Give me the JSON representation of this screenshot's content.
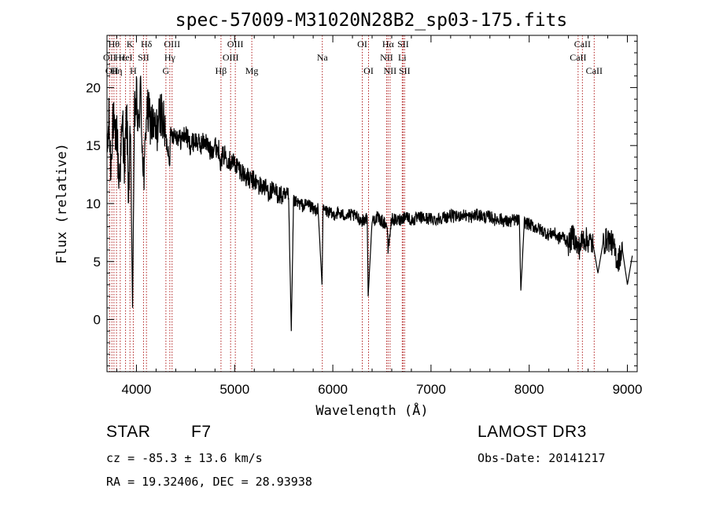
{
  "chart_data": {
    "type": "line",
    "title": "spec-57009-M31020N28B2_sp03-175.fits",
    "xlabel": "Wavelength (Å)",
    "ylabel": "Flux (relative)",
    "xlim": [
      3700,
      9100
    ],
    "ylim": [
      -4.5,
      24.5
    ],
    "xticks": [
      4000,
      5000,
      6000,
      7000,
      8000,
      9000
    ],
    "xtick_labels": [
      "4000",
      "5000",
      "6000",
      "7000",
      "8000",
      "9000"
    ],
    "yticks": [
      0,
      5,
      10,
      15,
      20
    ],
    "ytick_labels": [
      "0",
      "5",
      "10",
      "15",
      "20"
    ],
    "series": [
      {
        "name": "spectrum",
        "x": [
          3700,
          3720,
          3740,
          3760,
          3780,
          3800,
          3820,
          3840,
          3860,
          3880,
          3900,
          3920,
          3940,
          3960,
          3980,
          4000,
          4020,
          4040,
          4060,
          4080,
          4100,
          4150,
          4200,
          4250,
          4300,
          4340,
          4350,
          4400,
          4450,
          4500,
          4550,
          4600,
          4650,
          4700,
          4750,
          4800,
          4850,
          4861,
          4870,
          4900,
          4950,
          5000,
          5050,
          5100,
          5150,
          5200,
          5250,
          5300,
          5350,
          5400,
          5450,
          5500,
          5550,
          5577,
          5600,
          5650,
          5700,
          5750,
          5800,
          5850,
          5890,
          5900,
          5950,
          6000,
          6050,
          6100,
          6150,
          6200,
          6250,
          6300,
          6350,
          6360,
          6400,
          6450,
          6500,
          6550,
          6563,
          6600,
          6650,
          6700,
          6750,
          6800,
          6850,
          6900,
          6950,
          7000,
          7050,
          7100,
          7150,
          7200,
          7250,
          7300,
          7350,
          7400,
          7450,
          7500,
          7550,
          7600,
          7650,
          7700,
          7750,
          7800,
          7850,
          7900,
          7915,
          7950,
          8000,
          8050,
          8100,
          8150,
          8200,
          8250,
          8300,
          8350,
          8400,
          8450,
          8500,
          8550,
          8600,
          8650,
          8700,
          8750,
          8800,
          8850,
          8900,
          8950,
          9000,
          9050
        ],
        "y": [
          14,
          17,
          13,
          18,
          15,
          16.5,
          12,
          14,
          17,
          13,
          18,
          11,
          16,
          1,
          17.5,
          19,
          16,
          20,
          15,
          12,
          18,
          17,
          16,
          18,
          15.5,
          14,
          16,
          16,
          15.5,
          16,
          15,
          15.5,
          15,
          15.5,
          14.5,
          15,
          14.5,
          13,
          14,
          14.2,
          13.7,
          13.5,
          13,
          12.5,
          12,
          12,
          11.5,
          11.5,
          11,
          11,
          10.8,
          10.5,
          10.5,
          -1,
          10.2,
          10,
          9.8,
          10,
          9.5,
          9.5,
          3,
          9.5,
          9.3,
          9,
          9.2,
          9,
          9,
          9,
          8.8,
          8.5,
          8.8,
          2,
          8.5,
          8.8,
          8.5,
          8.2,
          6,
          8.7,
          8.5,
          8.7,
          9,
          8.5,
          8.7,
          8.8,
          8.7,
          8.7,
          8.6,
          8.8,
          8.8,
          9,
          8.8,
          9,
          9,
          8.8,
          9,
          9,
          8.8,
          8.9,
          8.6,
          8.7,
          8.5,
          8.4,
          8.6,
          8.5,
          2.5,
          8.4,
          8.2,
          8,
          7.8,
          7.6,
          7.3,
          7.5,
          7,
          7.2,
          6.5,
          7.3,
          6,
          7,
          6.8,
          6.5,
          4,
          6.5,
          7,
          6.5,
          5,
          6,
          3,
          5.5
        ]
      }
    ],
    "line_labels": [
      {
        "wavelength": 3727,
        "label": "OII",
        "row": 2
      },
      {
        "wavelength": 3750,
        "label": "OII",
        "row": 3
      },
      {
        "wavelength": 3771,
        "label": "Hθ",
        "row": 1
      },
      {
        "wavelength": 3797,
        "label": "Hη",
        "row": 3
      },
      {
        "wavelength": 3835,
        "label": "Hε",
        "row": 2
      },
      {
        "wavelength": 3889,
        "label": "HeI",
        "row": 2
      },
      {
        "wavelength": 3934,
        "label": "K",
        "row": 1
      },
      {
        "wavelength": 3968,
        "label": "H",
        "row": 3
      },
      {
        "wavelength": 4072,
        "label": "SII",
        "row": 2
      },
      {
        "wavelength": 4102,
        "label": "Hδ",
        "row": 1
      },
      {
        "wavelength": 4300,
        "label": "G",
        "row": 3
      },
      {
        "wavelength": 4340,
        "label": "Hγ",
        "row": 2
      },
      {
        "wavelength": 4363,
        "label": "OIII",
        "row": 1
      },
      {
        "wavelength": 4861,
        "label": "Hβ",
        "row": 3
      },
      {
        "wavelength": 4959,
        "label": "OIII",
        "row": 2
      },
      {
        "wavelength": 5007,
        "label": "OIII",
        "row": 1
      },
      {
        "wavelength": 5175,
        "label": "Mg",
        "row": 3
      },
      {
        "wavelength": 5893,
        "label": "Na",
        "row": 2
      },
      {
        "wavelength": 6300,
        "label": "OI",
        "row": 1
      },
      {
        "wavelength": 6364,
        "label": "OI",
        "row": 3
      },
      {
        "wavelength": 6548,
        "label": "NII",
        "row": 2
      },
      {
        "wavelength": 6563,
        "label": "Hα",
        "row": 1
      },
      {
        "wavelength": 6583,
        "label": "NII",
        "row": 3
      },
      {
        "wavelength": 6707,
        "label": "Li",
        "row": 2
      },
      {
        "wavelength": 6716,
        "label": "SII",
        "row": 1
      },
      {
        "wavelength": 6731,
        "label": "SII",
        "row": 3
      },
      {
        "wavelength": 8498,
        "label": "CaII",
        "row": 2
      },
      {
        "wavelength": 8542,
        "label": "CaII",
        "row": 1
      },
      {
        "wavelength": 8662,
        "label": "CaII",
        "row": 3
      }
    ],
    "line_color": "#b22222"
  },
  "info": {
    "class": "STAR",
    "subclass": "F7",
    "survey": "LAMOST DR3",
    "cz": "cz = -85.3 ± 13.6 km/s",
    "obs_date": "Obs-Date: 20141217",
    "coords": "RA =  19.32406, DEC =  28.93938"
  }
}
